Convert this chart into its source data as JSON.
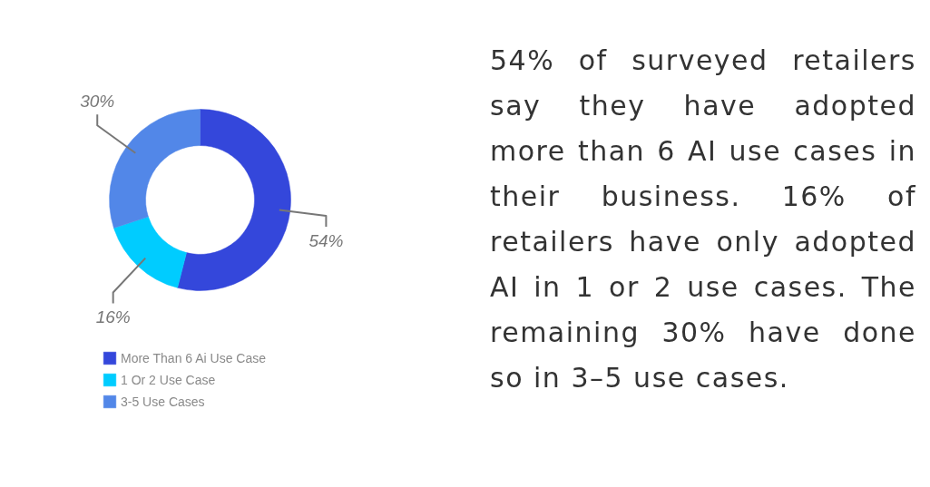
{
  "chart_data": {
    "type": "donut",
    "categories": [
      "More Than 6 Ai Use Case",
      "1 Or 2 Use Case",
      "3-5 Use Cases"
    ],
    "values": [
      54,
      16,
      30
    ],
    "colors": [
      "#3447db",
      "#00ccff",
      "#5287e8"
    ],
    "value_labels": [
      "54%",
      "16%",
      "30%"
    ],
    "legend": "bottom left",
    "annotations": [
      "54% of surveyed retailers say they have adopted more than 6 AI use cases in their business. 16% of retailers have only adopted AI in 1 or 2 use cases. The remaining 30% have done so in 3–5 use cases."
    ]
  }
}
